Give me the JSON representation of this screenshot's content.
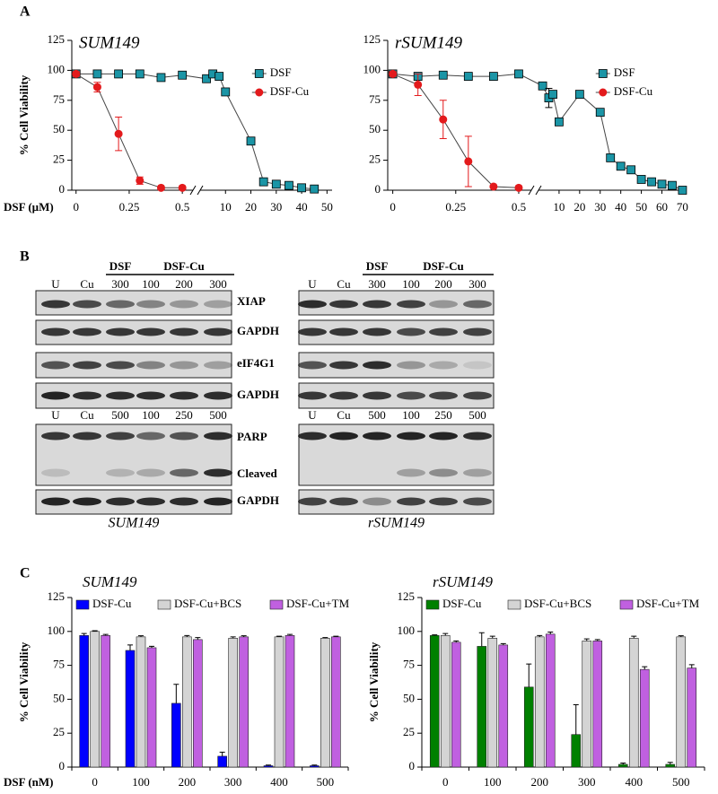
{
  "panel_labels": [
    "A",
    "B",
    "C"
  ],
  "chart_data": [
    {
      "type": "scatter",
      "title": "SUM149",
      "xlabel": "DSF (µM)",
      "ylabel": "% Cell Viability",
      "xlim": [
        [
          -0.02,
          0.55
        ],
        [
          0,
          52
        ]
      ],
      "xticks": [
        0,
        0.25,
        0.5,
        10,
        20,
        30,
        40,
        50
      ],
      "ylim": [
        0,
        125
      ],
      "yticks": [
        0,
        25,
        50,
        75,
        100,
        125
      ],
      "axis_break": true,
      "legend": "upper right",
      "fit_color": "#444444",
      "series": [
        {
          "name": "DSF",
          "color": "#1b95a6",
          "marker": "square",
          "x": [
            0,
            0.1,
            0.2,
            0.3,
            0.4,
            0.5,
            2.5,
            5,
            7.5,
            10,
            20,
            25,
            30,
            35,
            40,
            45
          ],
          "values": [
            97,
            97,
            97,
            97,
            94,
            96,
            93,
            97,
            95,
            82,
            41,
            7,
            5,
            4,
            2,
            1
          ]
        },
        {
          "name": "DSF-Cu",
          "color": "#e31a1c",
          "marker": "circle",
          "x": [
            0,
            0.1,
            0.2,
            0.3,
            0.4,
            0.5
          ],
          "values": [
            97,
            86,
            47,
            8,
            2,
            2
          ],
          "errors": [
            2,
            4,
            14,
            3,
            1,
            1
          ]
        }
      ]
    },
    {
      "type": "scatter",
      "title": "rSUM149",
      "xlim": [
        [
          -0.02,
          0.55
        ],
        [
          0,
          72
        ]
      ],
      "xticks": [
        0,
        0.25,
        0.5,
        10,
        20,
        30,
        40,
        50,
        60,
        70
      ],
      "ylim": [
        0,
        125
      ],
      "yticks": [
        0,
        25,
        50,
        75,
        100,
        125
      ],
      "axis_break": true,
      "legend": "upper right",
      "fit_color": "#444444",
      "series": [
        {
          "name": "DSF",
          "color": "#1b95a6",
          "marker": "square",
          "x": [
            0,
            0.1,
            0.2,
            0.3,
            0.4,
            0.5,
            2,
            5,
            7,
            10,
            20,
            30,
            35,
            40,
            45,
            50,
            55,
            60,
            65,
            70
          ],
          "values": [
            97,
            95,
            96,
            95,
            95,
            97,
            87,
            77,
            80,
            57,
            80,
            65,
            27,
            20,
            17,
            9,
            7,
            5,
            4,
            0
          ],
          "errors": [
            null,
            null,
            null,
            null,
            null,
            null,
            null,
            8,
            null,
            null,
            null,
            null,
            null,
            null,
            null,
            null,
            null,
            null,
            null,
            null
          ]
        },
        {
          "name": "DSF-Cu",
          "color": "#e31a1c",
          "marker": "circle",
          "x": [
            0,
            0.1,
            0.2,
            0.3,
            0.4,
            0.5
          ],
          "values": [
            97,
            88,
            59,
            24,
            3,
            2
          ],
          "errors": [
            2,
            9,
            16,
            21,
            1,
            1
          ]
        }
      ]
    },
    {
      "type": "bar",
      "title": "SUM149",
      "xlabel": "DSF (nM)",
      "ylabel": "% Cell Viability",
      "categories": [
        "0",
        "100",
        "200",
        "300",
        "400",
        "500"
      ],
      "ylim": [
        0,
        125
      ],
      "yticks": [
        0,
        25,
        50,
        75,
        100,
        125
      ],
      "legend": "top",
      "series": [
        {
          "name": "DSF-Cu",
          "color": "#0000ff",
          "values": [
            97,
            86,
            47,
            8,
            1,
            1
          ],
          "errors": [
            1.5,
            4,
            14,
            3,
            0.5,
            0.5
          ]
        },
        {
          "name": "DSF-Cu+BCS",
          "color": "#d4d4d4",
          "values": [
            100,
            96,
            96,
            95,
            96,
            95
          ],
          "errors": [
            0.5,
            0.8,
            1,
            1,
            0.5,
            0.5
          ]
        },
        {
          "name": "DSF-Cu+TM",
          "color": "#c060e0",
          "values": [
            97,
            88,
            94,
            96,
            97,
            96
          ],
          "errors": [
            0.8,
            1,
            1.5,
            0.8,
            0.8,
            0.5
          ]
        }
      ]
    },
    {
      "type": "bar",
      "title": "rSUM149",
      "ylabel": "% Cell Viability",
      "categories": [
        "0",
        "100",
        "200",
        "300",
        "400",
        "500"
      ],
      "ylim": [
        0,
        125
      ],
      "yticks": [
        0,
        25,
        50,
        75,
        100,
        125
      ],
      "legend": "top",
      "series": [
        {
          "name": "DSF-Cu",
          "color": "#008000",
          "values": [
            97,
            89,
            59,
            24,
            2,
            2
          ],
          "errors": [
            0.5,
            10,
            17,
            22,
            1,
            1.5
          ]
        },
        {
          "name": "DSF-Cu+BCS",
          "color": "#d4d4d4",
          "values": [
            97,
            95,
            96,
            93,
            95,
            96
          ],
          "errors": [
            1.5,
            1.5,
            1,
            1.5,
            1.5,
            0.8
          ]
        },
        {
          "name": "DSF-Cu+TM",
          "color": "#c060e0",
          "values": [
            92,
            90,
            98,
            93,
            72,
            73
          ],
          "errors": [
            1,
            1,
            1.5,
            1,
            2,
            2.5
          ]
        }
      ]
    }
  ],
  "blots": {
    "rows": [
      "XIAP",
      "GAPDH",
      "eIF4G1",
      "GAPDH",
      "PARP",
      "Cleaved",
      "GAPDH"
    ],
    "panels": [
      {
        "caption": "SUM149",
        "groups": [
          "DSF",
          "DSF-Cu"
        ],
        "lanes_top": [
          "U",
          "Cu",
          "300",
          "100",
          "200",
          "300"
        ],
        "lanes_bottom": [
          "U",
          "Cu",
          "500",
          "100",
          "250",
          "500"
        ]
      },
      {
        "caption": "rSUM149",
        "groups": [
          "DSF",
          "DSF-Cu"
        ],
        "lanes_top": [
          "U",
          "Cu",
          "300",
          "100",
          "200",
          "300"
        ],
        "lanes_bottom": [
          "U",
          "Cu",
          "500",
          "100",
          "250",
          "500"
        ]
      }
    ]
  }
}
